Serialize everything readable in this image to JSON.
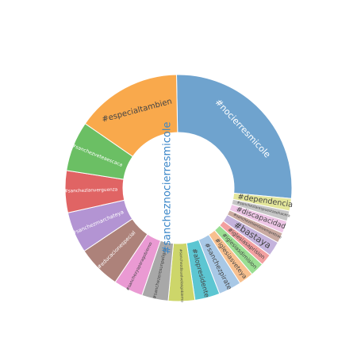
{
  "chart_data": {
    "type": "pie",
    "donut": true,
    "title": "",
    "center_label": "#sancheznocierresmicole",
    "start_angle_deg": -1,
    "direction": "clockwise",
    "slices": [
      {
        "label": "#nocierresmicole",
        "value": 25.5,
        "color": "#6fa3ce"
      },
      {
        "label": "#dependencia",
        "value": 1.7,
        "color": "#e3e69a"
      },
      {
        "label": "#sanchezlarespuestasehacera",
        "value": 1.4,
        "color": "#c5c5c5"
      },
      {
        "label": "#discapacidad",
        "value": 1.7,
        "color": "#eec6e6"
      },
      {
        "label": "#sanchezmientesiempretrae",
        "value": 1.4,
        "color": "#c9aaa1"
      },
      {
        "label": "#bastaya",
        "value": 2.0,
        "color": "#c4b3dc"
      },
      {
        "label": "#iglesiasaprision",
        "value": 1.6,
        "color": "#f2a0a0"
      },
      {
        "label": "#iglesiasdimision",
        "value": 1.9,
        "color": "#9ade92"
      },
      {
        "label": "#iglesiasveteya",
        "value": 2.0,
        "color": "#f8c08f"
      },
      {
        "label": "#sanchezpirate",
        "value": 3.1,
        "color": "#a8c8e6"
      },
      {
        "label": "#alopresidente",
        "value": 3.4,
        "color": "#5cc6d2"
      },
      {
        "label": "#sanchezdisuelvelasgobierno",
        "value": 3.6,
        "color": "#cdd66a"
      },
      {
        "label": "#sanchezeresunpeligro",
        "value": 3.6,
        "color": "#a8a8a8"
      },
      {
        "label": "#sanchezyaparagobierno",
        "value": 4.0,
        "color": "#ea9ad3"
      },
      {
        "label": "#educacionespecial",
        "value": 5.9,
        "color": "#ad827a"
      },
      {
        "label": "#sanchezmarchateya",
        "value": 5.6,
        "color": "#b394d3"
      },
      {
        "label": "#sanchezlanverguenza",
        "value": 5.7,
        "color": "#e06464"
      },
      {
        "label": "#sanchezveteaescaca",
        "value": 6.8,
        "color": "#6bbf64"
      },
      {
        "label": "#especialtambien",
        "value": 14.4,
        "color": "#f9a94c"
      }
    ]
  }
}
